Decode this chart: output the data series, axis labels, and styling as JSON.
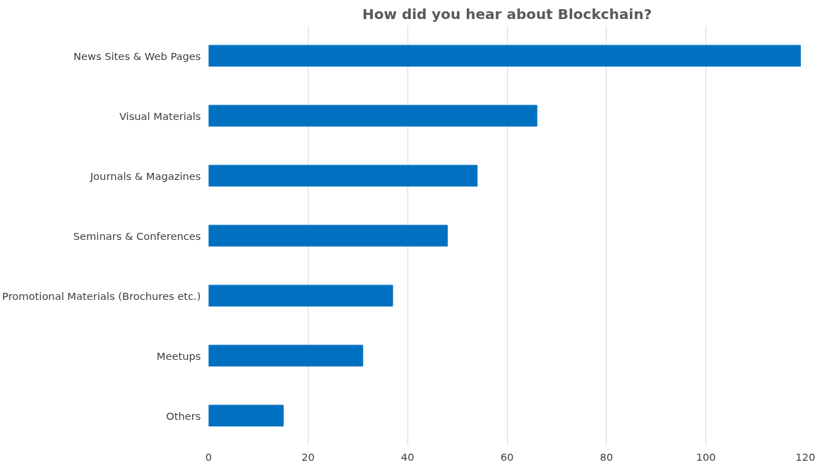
{
  "chart_data": {
    "type": "bar",
    "orientation": "horizontal",
    "title": "How did you hear about Blockchain?",
    "categories": [
      "News Sites & Web Pages",
      "Visual Materials",
      "Journals & Magazines",
      "Seminars & Conferences",
      "Promotional Materials (Brochures etc.)",
      "Meetups",
      "Others"
    ],
    "values": [
      119,
      66,
      54,
      48,
      37,
      31,
      15
    ],
    "color": "#0070c0",
    "xlim": [
      0,
      120
    ],
    "xticks": [
      0,
      20,
      40,
      60,
      80,
      100,
      120
    ],
    "grid": "x"
  }
}
